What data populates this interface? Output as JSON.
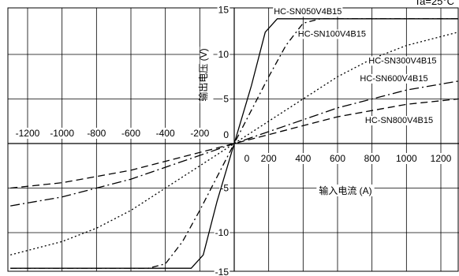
{
  "corner_label": "Ta=25°C",
  "chart_data": {
    "type": "line",
    "xlabel": "输入电流 (A)",
    "ylabel": "输出电压 (V)",
    "xlim": [
      -1300,
      1300
    ],
    "ylim": [
      -15,
      15
    ],
    "x_ticks_neg": [
      -1200,
      -1000,
      -800,
      -600,
      -400,
      -200
    ],
    "x_ticks_pos": [
      0,
      200,
      400,
      600,
      800,
      1000,
      1200
    ],
    "y_ticks": [
      15,
      10,
      5,
      0,
      -5,
      -10,
      -15
    ],
    "grid": true,
    "series": [
      {
        "name": "HC-SN050V4B15",
        "dash": "solid",
        "points": [
          [
            -1300,
            -14
          ],
          [
            -250,
            -14
          ],
          [
            -180,
            -12.5
          ],
          [
            -100,
            -6.5
          ],
          [
            0,
            0
          ],
          [
            100,
            6.5
          ],
          [
            180,
            12.5
          ],
          [
            250,
            14
          ],
          [
            1300,
            14
          ]
        ]
      },
      {
        "name": "HC-SN100V4B15",
        "dash": "dashdot",
        "points": [
          [
            -1300,
            -14
          ],
          [
            -500,
            -14
          ],
          [
            -400,
            -13.5
          ],
          [
            -300,
            -11
          ],
          [
            -200,
            -7.5
          ],
          [
            0,
            0
          ],
          [
            200,
            7.5
          ],
          [
            300,
            11
          ],
          [
            400,
            13.5
          ],
          [
            500,
            14
          ],
          [
            1300,
            14
          ]
        ]
      },
      {
        "name": "HC-SN300V4B15",
        "dash": "dotted",
        "points": [
          [
            -1300,
            -12.5
          ],
          [
            -1000,
            -11
          ],
          [
            -800,
            -9.5
          ],
          [
            -600,
            -7.5
          ],
          [
            -400,
            -5
          ],
          [
            0,
            0
          ],
          [
            400,
            5
          ],
          [
            600,
            7.5
          ],
          [
            800,
            9.5
          ],
          [
            1000,
            11
          ],
          [
            1300,
            12.5
          ]
        ]
      },
      {
        "name": "HC-SN600V4B15",
        "dash": "longdashdot",
        "points": [
          [
            -1300,
            -7
          ],
          [
            -1000,
            -6
          ],
          [
            -600,
            -4
          ],
          [
            0,
            0
          ],
          [
            600,
            4
          ],
          [
            1000,
            6
          ],
          [
            1300,
            7
          ]
        ]
      },
      {
        "name": "HC-SN800V4B15",
        "dash": "dashed",
        "points": [
          [
            -1300,
            -5
          ],
          [
            -1000,
            -4.4
          ],
          [
            -600,
            -3
          ],
          [
            0,
            0
          ],
          [
            600,
            3
          ],
          [
            1000,
            4.4
          ],
          [
            1300,
            5
          ]
        ]
      }
    ],
    "annotations": [
      {
        "text": "HC-SN050V4B15",
        "x": 230,
        "y": 14.5
      },
      {
        "text": "HC-SN100V4B15",
        "x": 370,
        "y": 12
      },
      {
        "text": "HC-SN300V4B15",
        "x": 780,
        "y": 9
      },
      {
        "text": "HC-SN600V4B15",
        "x": 730,
        "y": 7
      },
      {
        "text": "HC-SN800V4B15",
        "x": 760,
        "y": 2.3
      }
    ]
  }
}
